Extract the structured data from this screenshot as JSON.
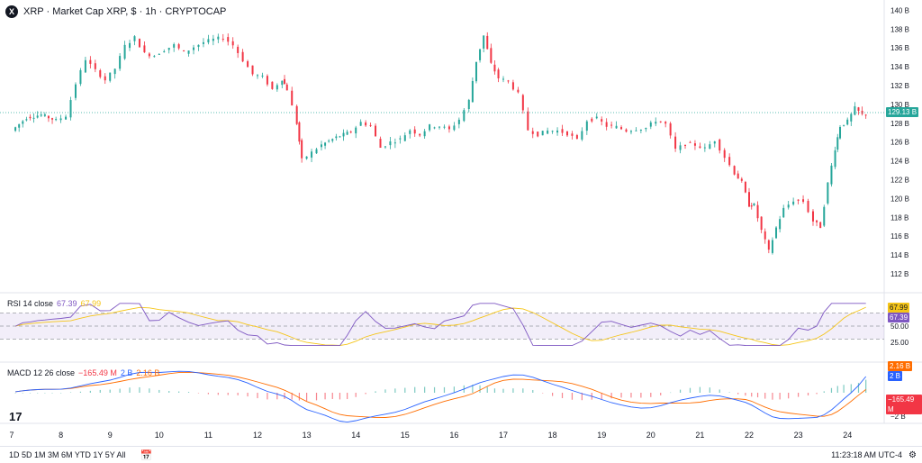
{
  "header": {
    "logo": "X",
    "title": "XRP · Market Cap XRP, $ · 1h · CRYPTOCAP"
  },
  "rsi": {
    "label": "RSI 14 close",
    "value1": "67.39",
    "value2": "67.99",
    "tag1": "67.99",
    "tag2": "67.39"
  },
  "macd": {
    "label": "MACD 12 26 close",
    "value1": "−165.49 M",
    "value2": "2 B",
    "value3": "2.16 B",
    "tag1": "2.16 B",
    "tag2": "2 B",
    "tag3": "−165.49 M"
  },
  "toolbar": {
    "timeframes": "1D  5D  1M  3M  6M  YTD  1Y  5Y  All",
    "calendar_icon": "calendar-icon",
    "time": "11:23:18 AM UTC-4",
    "settings_icon": "gear-icon"
  },
  "colors": {
    "up": "#26a69a",
    "down": "#f23645",
    "rsi": "#7e57c2",
    "rsi_ma": "#f5c518",
    "macd": "#2962ff",
    "signal": "#ff6d00"
  },
  "chart_data": {
    "type": "line",
    "title": "XRP · Market Cap XRP, $ · 1h · CRYPTOCAP",
    "ylabel": "",
    "xlabel": "",
    "y_axis_unit": "B",
    "ylim": [
      110,
      140
    ],
    "y_ticks": [
      "140 B",
      "138 B",
      "136 B",
      "134 B",
      "132 B",
      "130 B",
      "128 B",
      "126 B",
      "124 B",
      "122 B",
      "120 B",
      "118 B",
      "116 B",
      "114 B",
      "112 B"
    ],
    "x_ticks": [
      "7",
      "8",
      "9",
      "10",
      "11",
      "12",
      "13",
      "14",
      "15",
      "16",
      "17",
      "18",
      "19",
      "20",
      "21",
      "22",
      "23",
      "24"
    ],
    "last_price_label": "129.13 B",
    "last_price": 129.13,
    "price_path": [
      [
        7.0,
        127.2
      ],
      [
        7.3,
        128.6
      ],
      [
        7.6,
        128.9
      ],
      [
        7.9,
        128.3
      ],
      [
        8.1,
        128.8
      ],
      [
        8.3,
        132.2
      ],
      [
        8.5,
        134.8
      ],
      [
        8.7,
        133.6
      ],
      [
        8.9,
        132.6
      ],
      [
        9.1,
        133.8
      ],
      [
        9.3,
        136.2
      ],
      [
        9.5,
        137.1
      ],
      [
        9.7,
        135.4
      ],
      [
        9.9,
        135.2
      ],
      [
        10.1,
        135.8
      ],
      [
        10.3,
        136.3
      ],
      [
        10.5,
        135.5
      ],
      [
        10.7,
        136.1
      ],
      [
        10.9,
        136.6
      ],
      [
        11.1,
        136.9
      ],
      [
        11.3,
        137.1
      ],
      [
        11.5,
        136.3
      ],
      [
        11.7,
        134.7
      ],
      [
        11.9,
        133.2
      ],
      [
        12.1,
        132.9
      ],
      [
        12.3,
        131.6
      ],
      [
        12.5,
        132.7
      ],
      [
        12.6,
        131.6
      ],
      [
        12.8,
        128.0
      ],
      [
        12.9,
        124.1
      ],
      [
        13.1,
        124.9
      ],
      [
        13.3,
        125.7
      ],
      [
        13.6,
        126.5
      ],
      [
        13.9,
        127.1
      ],
      [
        14.1,
        128.1
      ],
      [
        14.3,
        127.7
      ],
      [
        14.5,
        125.4
      ],
      [
        14.7,
        126.0
      ],
      [
        14.9,
        126.3
      ],
      [
        15.1,
        127.3
      ],
      [
        15.3,
        126.8
      ],
      [
        15.5,
        127.7
      ],
      [
        15.7,
        127.7
      ],
      [
        15.9,
        127.3
      ],
      [
        16.1,
        128.4
      ],
      [
        16.3,
        130.4
      ],
      [
        16.45,
        134.6
      ],
      [
        16.6,
        137.3
      ],
      [
        16.75,
        134.3
      ],
      [
        16.9,
        132.8
      ],
      [
        17.1,
        132.4
      ],
      [
        17.3,
        131.1
      ],
      [
        17.5,
        127.3
      ],
      [
        17.7,
        126.8
      ],
      [
        17.9,
        127.2
      ],
      [
        18.1,
        127.2
      ],
      [
        18.3,
        126.9
      ],
      [
        18.5,
        126.2
      ],
      [
        18.7,
        128.3
      ],
      [
        18.9,
        128.5
      ],
      [
        19.1,
        127.7
      ],
      [
        19.3,
        127.6
      ],
      [
        19.5,
        127.2
      ],
      [
        19.7,
        127.4
      ],
      [
        19.9,
        127.5
      ],
      [
        20.1,
        128.3
      ],
      [
        20.3,
        127.9
      ],
      [
        20.5,
        125.2
      ],
      [
        20.7,
        125.8
      ],
      [
        20.9,
        125.7
      ],
      [
        21.1,
        125.3
      ],
      [
        21.3,
        126.2
      ],
      [
        21.5,
        124.4
      ],
      [
        21.7,
        122.7
      ],
      [
        21.85,
        121.7
      ],
      [
        22.0,
        119.3
      ],
      [
        22.1,
        119.3
      ],
      [
        22.25,
        116.6
      ],
      [
        22.4,
        114.4
      ],
      [
        22.55,
        116.9
      ],
      [
        22.7,
        118.9
      ],
      [
        22.9,
        119.8
      ],
      [
        23.1,
        119.7
      ],
      [
        23.3,
        117.6
      ],
      [
        23.45,
        117.0
      ],
      [
        23.6,
        121.6
      ],
      [
        23.75,
        125.3
      ],
      [
        23.85,
        127.7
      ],
      [
        24.0,
        128.2
      ],
      [
        24.15,
        129.6
      ],
      [
        24.3,
        128.9
      ],
      [
        24.45,
        129.13
      ]
    ],
    "rsi_scale": {
      "levels": [
        70,
        50,
        30
      ],
      "labels": [
        "50.00",
        "25.00"
      ],
      "current": 67.39,
      "ma": 67.99
    },
    "macd_scale": {
      "labels": [
        "−2 B"
      ],
      "macd": 2.0,
      "signal": 2.16,
      "histogram": -0.16549
    }
  }
}
